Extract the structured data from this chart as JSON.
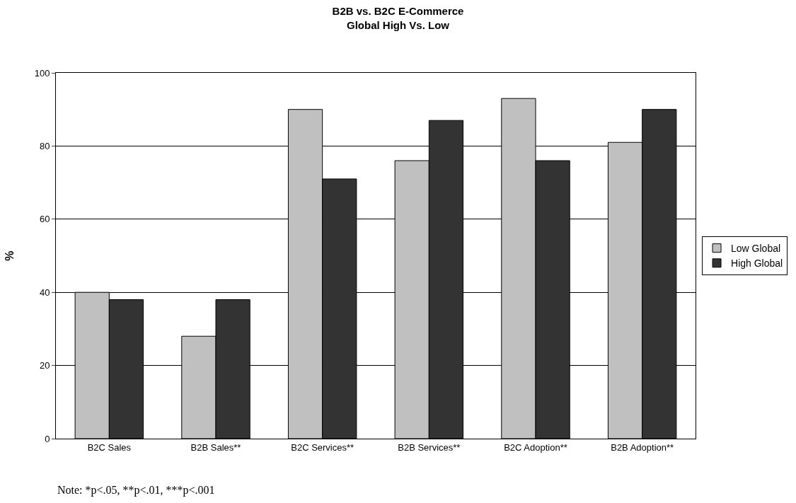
{
  "chart_data": {
    "type": "bar",
    "title": "B2B vs. B2C E-Commerce\nGlobal High Vs. Low",
    "ylabel": "%",
    "categories": [
      "B2C Sales",
      "B2B Sales**",
      "B2C Services**",
      "B2B Services**",
      "B2C Adoption**",
      "B2B Adoption**"
    ],
    "series": [
      {
        "name": "Low Global",
        "color": "#c0c0c0",
        "values": [
          40,
          28,
          90,
          76,
          93,
          81
        ]
      },
      {
        "name": "High Global",
        "color": "#333333",
        "values": [
          38,
          38,
          71,
          87,
          76,
          90
        ]
      }
    ],
    "ylim": [
      0,
      100
    ],
    "yticks": [
      0,
      20,
      40,
      60,
      80,
      100
    ],
    "grid": "y",
    "legend": "right",
    "annotations": [
      "Note: *p<.05, **p<.01, ***p<.001"
    ]
  }
}
